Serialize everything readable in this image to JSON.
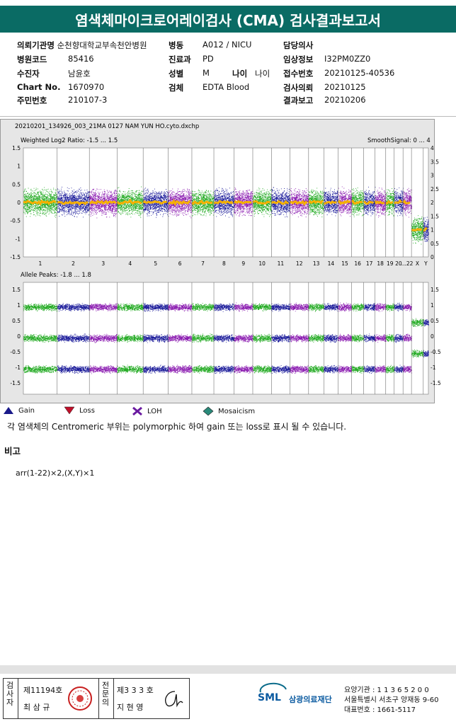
{
  "title": "염색체마이크로어레이검사 (CMA) 검사결과보고서",
  "info": {
    "institution_label": "의뢰기관명",
    "institution": "순천향대학교부속천안병원",
    "ward_label": "병동",
    "ward": "A012 / NICU",
    "doctor_label": "담당의사",
    "doctor": "",
    "hospital_code_label": "병원코드",
    "hospital_code": "85416",
    "dept_label": "진료과",
    "dept": "PD",
    "clinical_label": "임상정보",
    "clinical": "I32PM0ZZ0",
    "patient_label": "수진자",
    "patient": "남윤호",
    "sex_label": "성별",
    "sex": "M",
    "age_label": "나이",
    "age": "나이",
    "receipt_label": "접수번호",
    "receipt": "20210125-40536",
    "chart_label": "Chart No.",
    "chart": "1670970",
    "specimen_label": "검체",
    "specimen": "EDTA Blood",
    "request_label": "검사의뢰",
    "request": "20210125",
    "order_label": "주민번호",
    "order": "210107-3",
    "report_label": "결과보고",
    "report": "20210206"
  },
  "plot": {
    "filename": "20210201_134926_003_21MA 0127 NAM YUN HO.cyto.dxchp",
    "top_title": "Weighted Log2 Ratio: -1.5 ... 1.5",
    "top_right": "SmoothSignal: 0 ... 4",
    "bottom_title": "Allele Peaks: -1.8 ... 1.8",
    "top_left_ticks": [
      "1.5",
      "1",
      "0.5",
      "0",
      "-0.5",
      "-1",
      "-1.5"
    ],
    "top_right_ticks": [
      "4",
      "3.5",
      "3",
      "2.5",
      "2",
      "1.5",
      "1",
      "0.5",
      "0"
    ],
    "bottom_left_ticks": [
      "1.5",
      "1",
      "0.5",
      "0",
      "-0.5",
      "-1",
      "-1.5"
    ],
    "bottom_right_ticks": [
      "1.5",
      "1",
      "0.5",
      "0",
      "-0.5",
      "-1",
      "-1.5"
    ],
    "chromosomes": [
      "1",
      "2",
      "3",
      "4",
      "5",
      "6",
      "7",
      "8",
      "9",
      "10",
      "11",
      "12",
      "13",
      "14",
      "15",
      "16",
      "17",
      "18",
      "19",
      "20",
      "...22",
      "X",
      "Y"
    ],
    "colors": {
      "green": "#22aa22",
      "blue": "#1a1a9a",
      "purple": "#8a1ab0",
      "smooth": "#f5b000"
    }
  },
  "legend": {
    "gain": "Gain",
    "loss": "Loss",
    "loh": "LOH",
    "mosaic": "Mosaicism"
  },
  "note": "각 염색체의 Centromeric 부위는 polymorphic 하여 gain 또는 loss로 표시 될 수 있습니다.",
  "remarks_label": "비고",
  "result": "arr(1-22)×2,(X,Y)×1",
  "footer": {
    "examiner_label": "검사자",
    "examiner_no": "제11194호",
    "examiner_name": "최 삼 규",
    "specialist_label": "전문의",
    "specialist_no": "제3 3 3 호",
    "specialist_name": "지 현 영",
    "org_name": "삼광의료재단",
    "org_logo": "SML",
    "org_code": "요양기관 : 1 1 3 6 5 2 0 0",
    "org_addr": "서울특별시 서초구 양재동 9-60",
    "org_tel": "대표번호 : 1661-5117"
  }
}
